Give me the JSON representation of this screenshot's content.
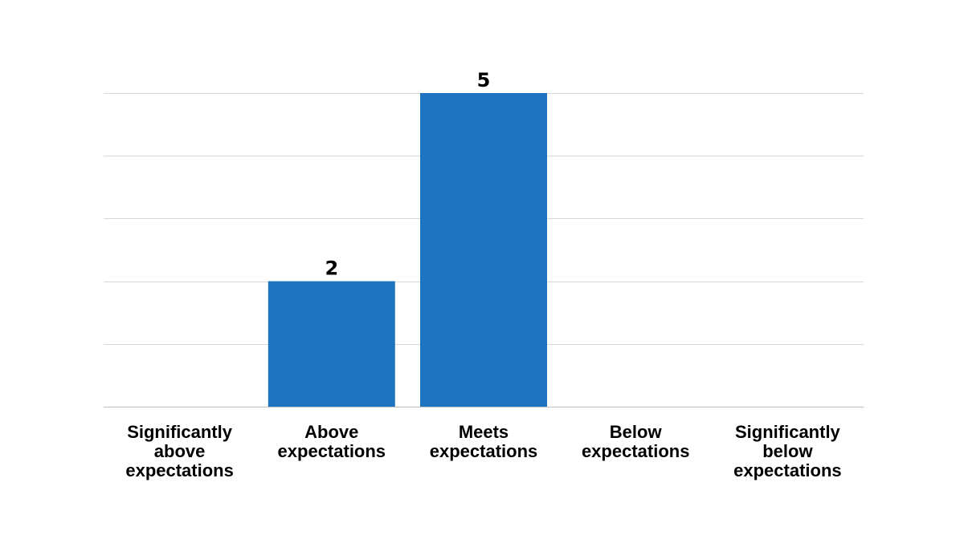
{
  "chart_data": {
    "type": "bar",
    "categories": [
      "Significantly above expectations",
      "Above expectations",
      "Meets expectations",
      "Below expectations",
      "Significantly below expectations"
    ],
    "category_lines": [
      [
        "Significantly",
        "above",
        "expectations"
      ],
      [
        "Above",
        "expectations"
      ],
      [
        "Meets",
        "expectations"
      ],
      [
        "Below",
        "expectations"
      ],
      [
        "Significantly",
        "below",
        "expectations"
      ]
    ],
    "values": [
      0,
      2,
      5,
      0,
      0
    ],
    "data_labels": [
      "",
      "2",
      "5",
      "",
      ""
    ],
    "title": "",
    "xlabel": "",
    "ylabel": "",
    "ylim": [
      0,
      5
    ],
    "grid": true,
    "legend": "none",
    "colors": {
      "bar": "#1f74bf",
      "grid": "#d9d9d9"
    }
  }
}
